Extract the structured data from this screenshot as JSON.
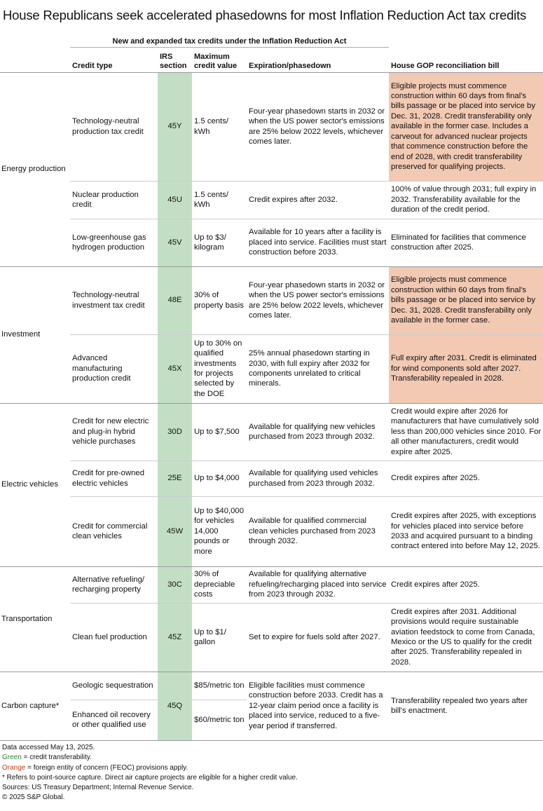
{
  "title": "House Republicans seek accelerated phasedowns for most Inflation Reduction Act tax credits",
  "supheader": "New and expanded tax credits under the Inflation Reduction Act",
  "headers": {
    "type": "Credit type",
    "irs": "IRS section",
    "max": "Maximum credit value",
    "exp": "Expiration/phasedown",
    "gop": "House GOP reconciliation bill"
  },
  "colors": {
    "green": "#c2dfc5",
    "orange": "#f2c9b3",
    "green_text": "#2e7d32",
    "orange_text": "#c0401a"
  },
  "groups": [
    {
      "label": "Energy production",
      "rows": [
        {
          "type": "Technology-neutral production tax credit",
          "irs": "45Y",
          "max": "1.5 cents/ kWh",
          "exp": "Four-year phasedown starts in 2032 or when the US power sector's emissions are 25% below 2022 levels, whichever comes later.",
          "gop": "Eligible projects must commence construction within 60 days from final's bills passage or be placed into service by Dec. 31, 2028. Credit transferability only available in the former case. Includes a carveout for advanced nuclear projects that commence construction before the end of 2028, with credit transferability preserved for qualifying projects.",
          "feoc": true
        },
        {
          "type": "Nuclear production credit",
          "irs": "45U",
          "max": "1.5 cents/ kWh",
          "exp": "Credit expires after 2032.",
          "gop": "100% of value through 2031; full expiry in 2032. Transferability available for the duration of the credit period.",
          "feoc": false
        },
        {
          "type": "Low-greenhouse gas hydrogen production",
          "irs": "45V",
          "max": "Up to $3/ kilogram",
          "exp": "Available for 10 years after a facility is placed into service. Facilities must start construction before 2033.",
          "gop": "Eliminated for facilities that commence construction after 2025.",
          "feoc": false
        }
      ]
    },
    {
      "label": "Investment",
      "rows": [
        {
          "type": "Technology-neutral investment tax credit",
          "irs": "48E",
          "max": "30% of property basis",
          "exp": "Four-year phasedown starts in 2032 or when the US power sector's emissions are 25% below 2022 levels, whichever comes later.",
          "gop": "Eligible projects must commence construction within 60 days from final's bills passage or be placed into service by Dec. 31, 2028. Credit transferability only available in the former case.",
          "feoc": true
        },
        {
          "type": "Advanced manufacturing production credit",
          "irs": "45X",
          "max": "Up to 30% on qualified investments for projects selected by the DOE",
          "exp": "25% annual phasedown starting in 2030, with full expiry after 2032 for components unrelated to critical minerals.",
          "gop": "Full expiry after 2031. Credit is eliminated for wind components sold after 2027. Transferability repealed in 2028.",
          "feoc": true
        }
      ]
    },
    {
      "label": "Electric vehicles",
      "rows": [
        {
          "type": "Credit for new electric and plug-in hybrid vehicle purchases",
          "irs": "30D",
          "max": "Up to $7,500",
          "exp": "Available for qualifying new vehicles purchased from 2023 through 2032.",
          "gop": "Credit would expire after 2026 for manufacturers that have cumulatively sold less than 200,000 vehicles since 2010. For all other manufacturers, credit would expire after 2025.",
          "feoc": false
        },
        {
          "type": "Credit for pre-owned electric vehicles",
          "irs": "25E",
          "max": "Up to $4,000",
          "exp": "Available for qualifying used vehicles purchased from 2023 through 2032.",
          "gop": "Credit expires after 2025.",
          "feoc": false
        },
        {
          "type": "Credit for commercial clean vehicles",
          "irs": "45W",
          "max": "Up to $40,000 for vehicles 14,000 pounds or more",
          "exp": "Available for qualified commercial clean vehicles purchased from 2023 through 2032.",
          "gop": "Credit expires after 2025, with exceptions for vehicles placed into service before 2033 and acquired pursuant to a binding contract entered into before May 12, 2025.",
          "feoc": false
        }
      ]
    },
    {
      "label": "Transportation",
      "rows": [
        {
          "type": "Alternative refueling/ recharging property",
          "irs": "30C",
          "max": "30% of depreciable costs",
          "exp": "Available for qualifying alternative refueling/recharging placed into service from 2023 through 2032.",
          "gop": "Credit expires after 2025.",
          "feoc": false
        },
        {
          "type": "Clean fuel production",
          "irs": "45Z",
          "max": "Up to $1/ gallon",
          "exp": "Set to expire for fuels sold after 2027.",
          "gop": "Credit expires after 2031. Additional provisions would require sustainable aviation feedstock to come from Canada, Mexico or the US to qualify for the credit after 2025. Transferability repealed in 2028.",
          "feoc": false
        }
      ]
    },
    {
      "label": "Carbon capture*",
      "irs": "45Q",
      "exp": "Eligible facilities must commence construction before 2033. Credit has a 12-year claim period once a facility is placed into service, reduced to a five-year period if transferred.",
      "gop": "Transferability repealed two years after bill's enactment.",
      "rows": [
        {
          "type": "Geologic sequestration",
          "max": "$85/metric ton"
        },
        {
          "type": "Enhanced oil recovery or other qualified use",
          "max": "$60/metric ton"
        }
      ]
    }
  ],
  "footnotes": {
    "accessed": "Data accessed May 13, 2025.",
    "green_word": "Green",
    "green_rest": " = credit transferability.",
    "orange_word": "Orange",
    "orange_rest": " = foreign entity of concern (FEOC) provisions apply.",
    "asterisk": "* Refers to point-source capture. Direct air capture projects are eligible for a higher credit value.",
    "sources": "Sources: US Treasury Department; Internal Revenue Service.",
    "copyright": "© 2025 S&P Global."
  }
}
